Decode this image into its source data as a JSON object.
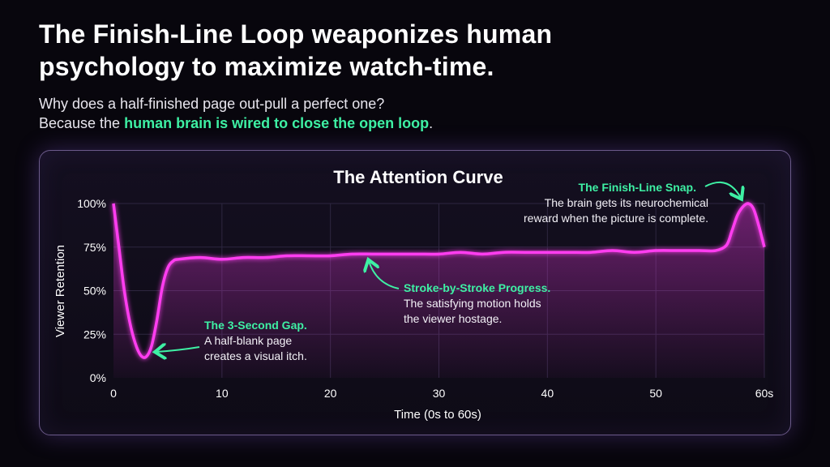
{
  "header": {
    "title": "The Finish-Line Loop weaponizes human psychology to maximize watch-time.",
    "subtitle_line1": "Why does a half-finished page out-pull a perfect one?",
    "subtitle_line2_pre": "Because the ",
    "subtitle_line2_highlight": "human brain is wired to close the open loop",
    "subtitle_line2_post": "."
  },
  "chart_data": {
    "type": "line",
    "title": "The Attention Curve",
    "xlabel": "Time (0s to 60s)",
    "ylabel": "Viewer Retention",
    "xlim": [
      0,
      60
    ],
    "ylim": [
      0,
      100
    ],
    "x_ticks": [
      "0",
      "10",
      "20",
      "30",
      "40",
      "50",
      "60s"
    ],
    "y_ticks": [
      "0%",
      "25%",
      "50%",
      "75%",
      "100%"
    ],
    "grid": true,
    "series": [
      {
        "name": "",
        "color": "#ff3df0",
        "points": [
          [
            0,
            100
          ],
          [
            0.5,
            75
          ],
          [
            1,
            50
          ],
          [
            1.5,
            32
          ],
          [
            2,
            20
          ],
          [
            2.5,
            13
          ],
          [
            3,
            12
          ],
          [
            3.5,
            18
          ],
          [
            4,
            33
          ],
          [
            4.5,
            52
          ],
          [
            5,
            63
          ],
          [
            5.5,
            67
          ],
          [
            6,
            68
          ],
          [
            8,
            69
          ],
          [
            10,
            68
          ],
          [
            12,
            69
          ],
          [
            14,
            69
          ],
          [
            16,
            70
          ],
          [
            18,
            70
          ],
          [
            20,
            70
          ],
          [
            22,
            71
          ],
          [
            24,
            71
          ],
          [
            26,
            71
          ],
          [
            28,
            71
          ],
          [
            30,
            71
          ],
          [
            32,
            72
          ],
          [
            34,
            71
          ],
          [
            36,
            72
          ],
          [
            38,
            72
          ],
          [
            40,
            72
          ],
          [
            42,
            72
          ],
          [
            44,
            72
          ],
          [
            46,
            73
          ],
          [
            48,
            72
          ],
          [
            50,
            73
          ],
          [
            52,
            73
          ],
          [
            54,
            73
          ],
          [
            55.5,
            73
          ],
          [
            56.5,
            76
          ],
          [
            57,
            84
          ],
          [
            57.5,
            93
          ],
          [
            58,
            98
          ],
          [
            58.5,
            100
          ],
          [
            59,
            97
          ],
          [
            59.5,
            87
          ],
          [
            60,
            75
          ]
        ]
      }
    ],
    "annotations": [
      {
        "title": "The 3-Second Gap.",
        "lines": [
          "A half-blank page",
          "creates a visual itch."
        ],
        "x": 3,
        "y": 12
      },
      {
        "title": "Stroke-by-Stroke Progress.",
        "lines": [
          "The satisfying motion holds",
          "the viewer hostage."
        ],
        "x": 23.5,
        "y": 71
      },
      {
        "title": "The Finish-Line Snap.",
        "lines": [
          "The brain gets its neurochemical",
          "reward when the picture is complete."
        ],
        "x": 58.5,
        "y": 100
      }
    ],
    "colors": {
      "line": "#ff3df0",
      "axis": "#3ef0a4",
      "annotation": "#3ef0a4"
    }
  }
}
